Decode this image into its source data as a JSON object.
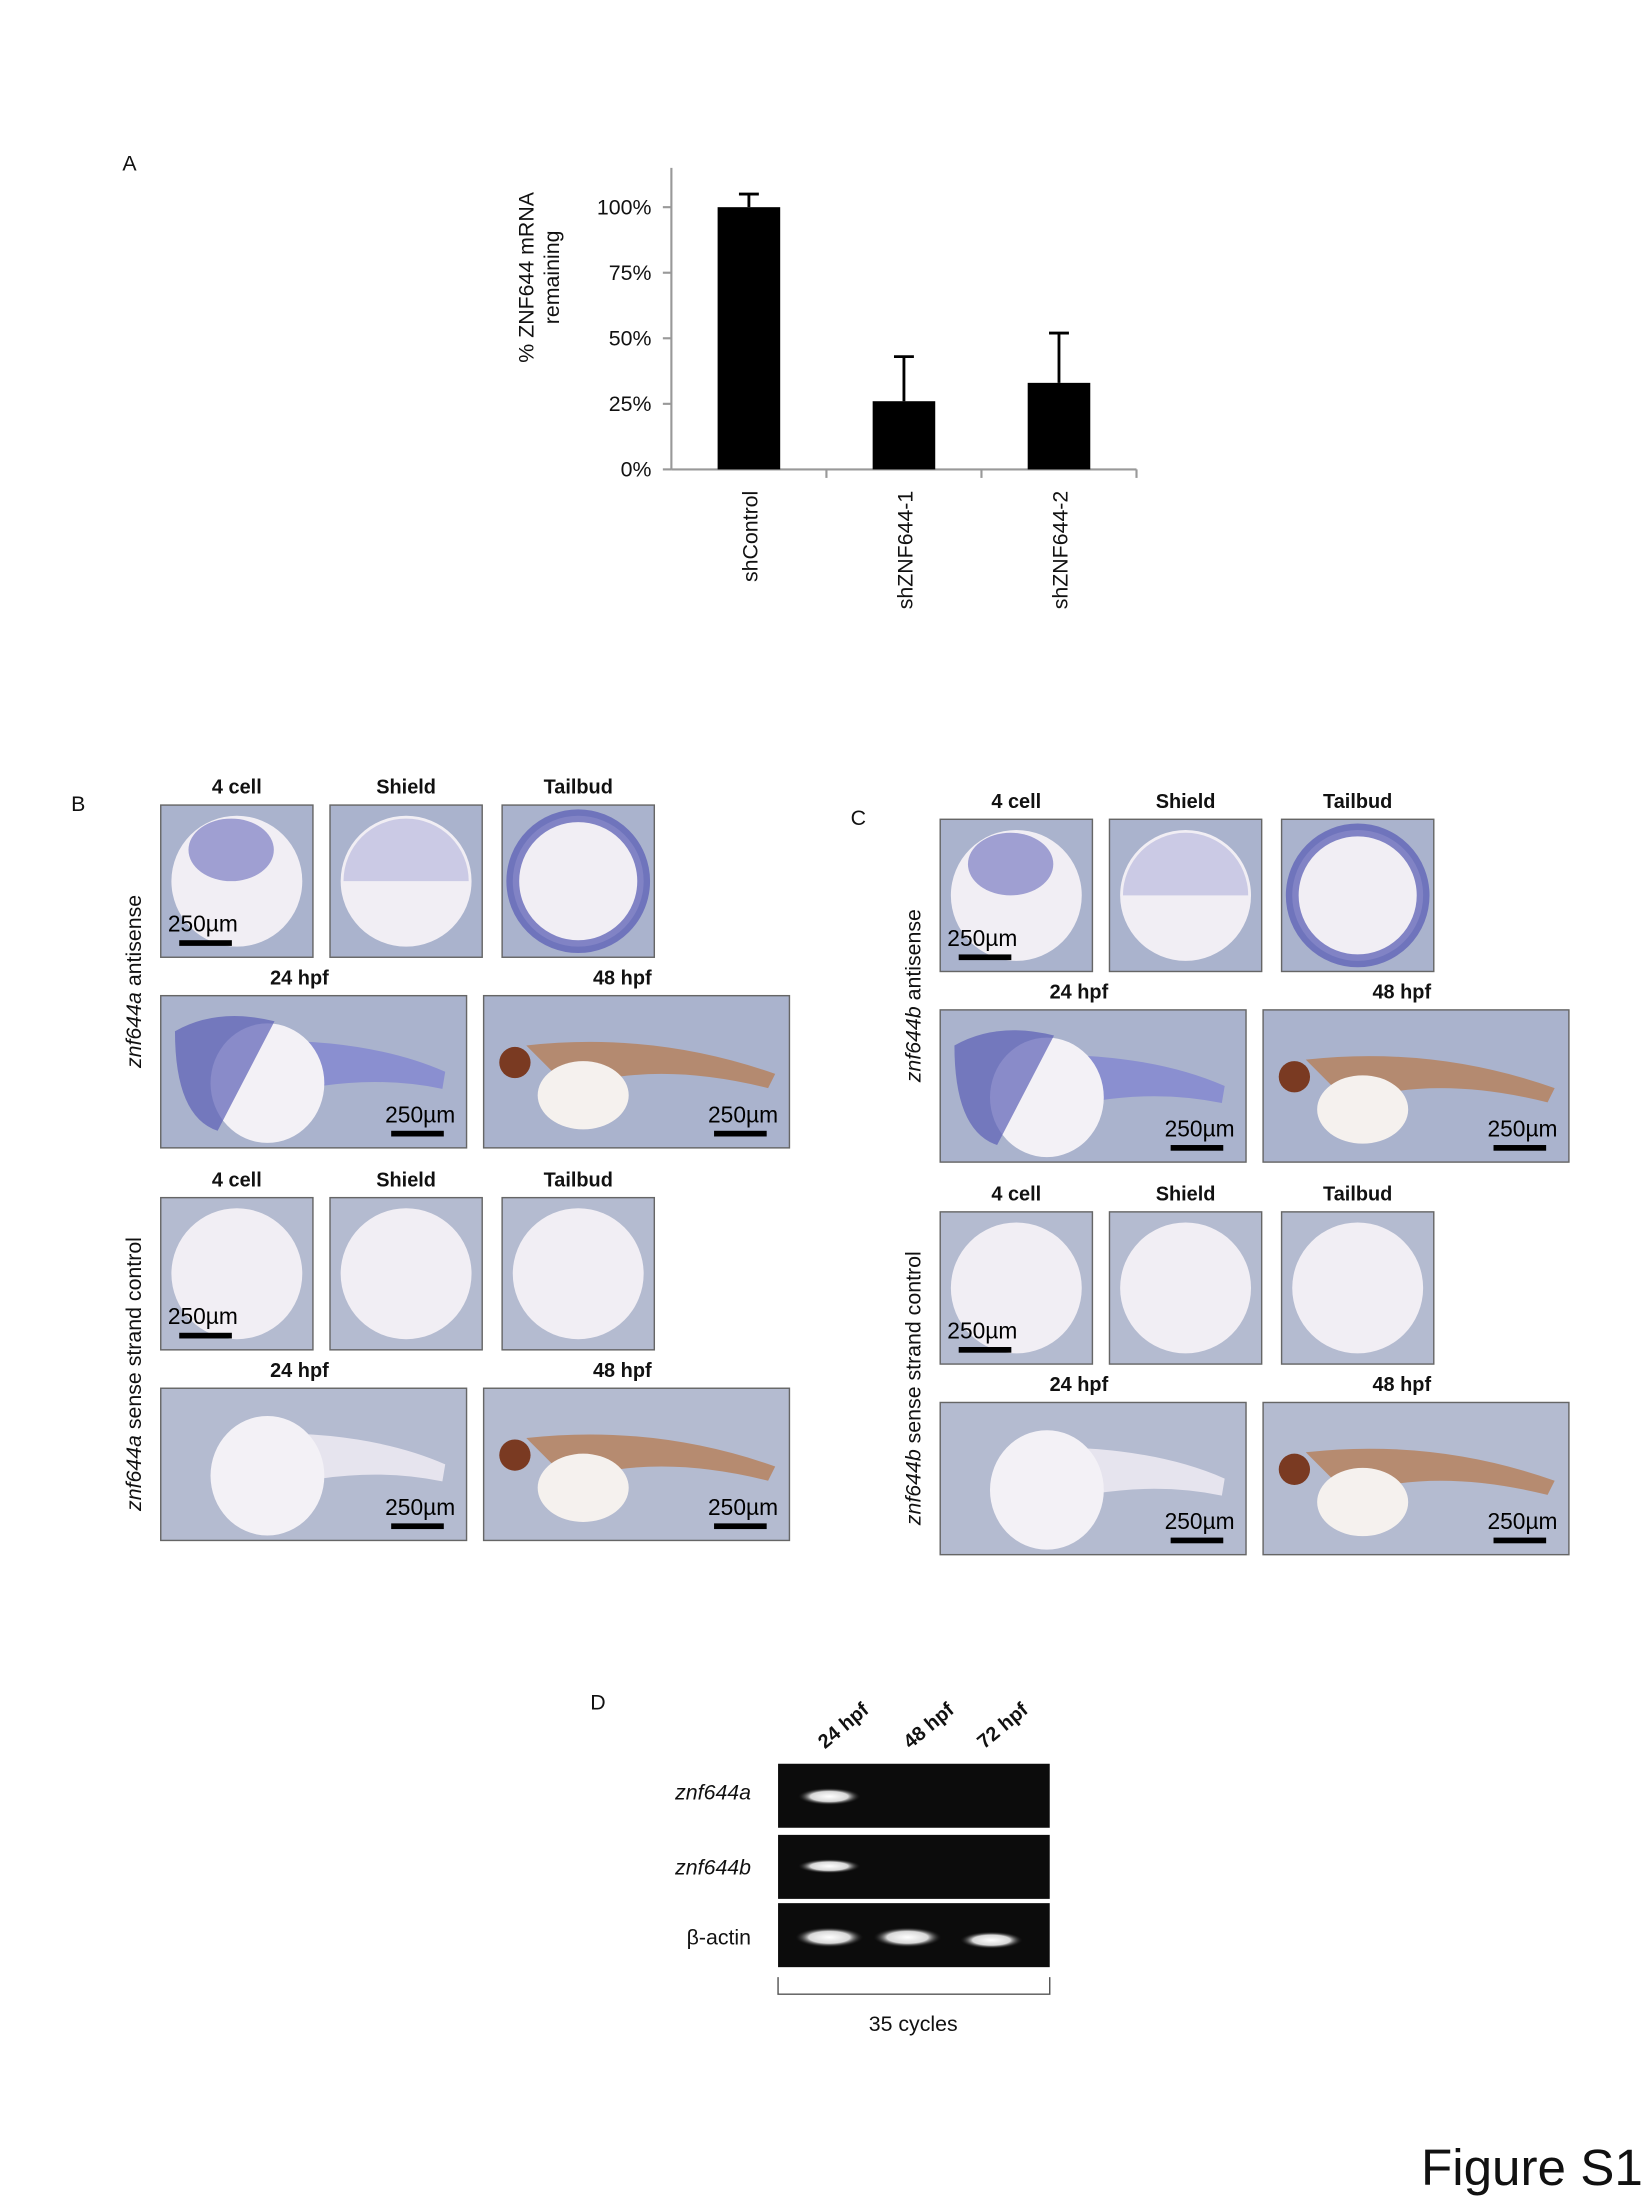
{
  "chart_data": {
    "type": "bar",
    "panel_label": "A",
    "y_label": [
      "% ZNF644 mRNA",
      "remaining"
    ],
    "categories": [
      "shControl",
      "shZNF644-1",
      "shZNF644-2"
    ],
    "values": [
      100,
      26,
      33
    ],
    "errors": [
      5,
      17,
      19
    ],
    "color": "#000000",
    "ylim": [
      0,
      115
    ],
    "yticks": [
      {
        "value": 0,
        "label": "0%"
      },
      {
        "value": 25,
        "label": "25%"
      },
      {
        "value": 50,
        "label": "50%"
      },
      {
        "value": 75,
        "label": "75%"
      },
      {
        "value": 100,
        "label": "100%"
      }
    ]
  },
  "panels": [
    {
      "label": "B",
      "gene": "znf644a",
      "groups": [
        {
          "probe": "antisense",
          "tinted": true,
          "rows": [
            [
              {
                "header": "4 cell",
                "scale_bar": "250µm"
              },
              {
                "header": "Shield"
              },
              {
                "header": "Tailbud"
              }
            ],
            [
              {
                "header": "24 hpf",
                "scale_bar": "250µm"
              },
              {
                "header": "48 hpf",
                "scale_bar": "250µm"
              }
            ]
          ]
        },
        {
          "probe": "sense strand control",
          "tinted": false,
          "rows": [
            [
              {
                "header": "4 cell",
                "scale_bar": "250µm"
              },
              {
                "header": "Shield"
              },
              {
                "header": "Tailbud"
              }
            ],
            [
              {
                "header": "24 hpf",
                "scale_bar": "250µm"
              },
              {
                "header": "48 hpf",
                "scale_bar": "250µm"
              }
            ]
          ]
        }
      ]
    },
    {
      "label": "C",
      "gene": "znf644b",
      "groups": [
        {
          "probe": "antisense",
          "tinted": true,
          "rows": [
            [
              {
                "header": "4 cell",
                "scale_bar": "250µm"
              },
              {
                "header": "Shield"
              },
              {
                "header": "Tailbud"
              }
            ],
            [
              {
                "header": "24 hpf",
                "scale_bar": "250µm"
              },
              {
                "header": "48 hpf",
                "scale_bar": "250µm"
              }
            ]
          ]
        },
        {
          "probe": "sense strand control",
          "tinted": false,
          "rows": [
            [
              {
                "header": "4 cell",
                "scale_bar": "250µm"
              },
              {
                "header": "Shield"
              },
              {
                "header": "Tailbud"
              }
            ],
            [
              {
                "header": "24 hpf",
                "scale_bar": "250µm"
              },
              {
                "header": "48 hpf",
                "scale_bar": "250µm"
              }
            ]
          ]
        }
      ]
    }
  ],
  "gel": {
    "label": "D",
    "lanes": [
      "24 hpf",
      "48 hpf",
      "72 hpf"
    ],
    "rows": [
      "znf644a",
      "znf644b",
      "β-actin"
    ],
    "footer": "35 cycles"
  },
  "figure_label": "Figure S1"
}
